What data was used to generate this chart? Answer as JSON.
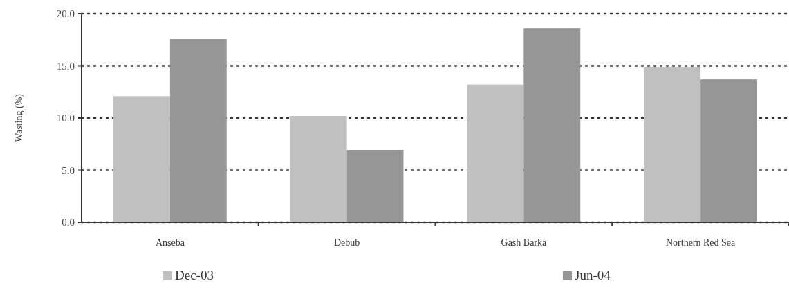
{
  "chart_data": {
    "type": "bar",
    "ylabel": "Wasting (%)",
    "categories": [
      "Anseba",
      "Debub",
      "Gash Barka",
      "Northern Red Sea"
    ],
    "series": [
      {
        "name": "Dec-03",
        "color": "#c0c0c0",
        "values": [
          12.1,
          10.2,
          13.2,
          14.9
        ]
      },
      {
        "name": "Jun-04",
        "color": "#969696",
        "values": [
          17.6,
          6.9,
          18.6,
          13.7
        ]
      }
    ],
    "ylim": [
      0,
      20
    ],
    "yticks": [
      {
        "value": 0,
        "label": "0.0"
      },
      {
        "value": 5,
        "label": "5.0"
      },
      {
        "value": 10,
        "label": "10.0"
      },
      {
        "value": 15,
        "label": "15.0"
      },
      {
        "value": 20,
        "label": "20.0"
      }
    ],
    "grid": "y",
    "legend": "bottom"
  }
}
